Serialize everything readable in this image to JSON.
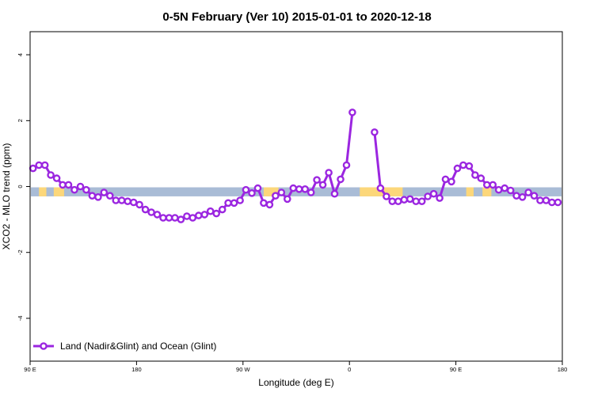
{
  "chart_data": {
    "type": "line",
    "title": "0-5N February (Ver 10)   2015-01-01 to 2020-12-18",
    "xlabel": "Longitude (deg E)",
    "ylabel": "XCO2 - MLO trend (ppm)",
    "xlim": [
      0,
      360
    ],
    "ylim": [
      -5.3,
      4.7
    ],
    "x_ticks": [
      {
        "value": 0,
        "label": "90 E"
      },
      {
        "value": 72,
        "label": "180"
      },
      {
        "value": 144,
        "label": "90 W"
      },
      {
        "value": 216,
        "label": "0"
      },
      {
        "value": 288,
        "label": "90 E"
      },
      {
        "value": 360,
        "label": "180"
      }
    ],
    "y_ticks": [
      {
        "value": -4,
        "label": "-4"
      },
      {
        "value": -2,
        "label": "-2"
      },
      {
        "value": 0,
        "label": "0"
      },
      {
        "value": 2,
        "label": "2"
      },
      {
        "value": 4,
        "label": "4"
      }
    ],
    "band": {
      "y_min": -0.25,
      "y_max": 0.0,
      "ocean_color": "#a9bcd6",
      "land_color": "#fcd77a"
    },
    "land_segments": [
      [
        6,
        11
      ],
      [
        16,
        23
      ],
      [
        158,
        168
      ],
      [
        223,
        252
      ],
      [
        295,
        300
      ],
      [
        306,
        312
      ]
    ],
    "series": [
      {
        "name": "Land (Nadir&Glint) and Ocean (Glint)",
        "color": "#9b26e0",
        "segments": [
          [
            [
              2,
              0.55
            ],
            [
              6,
              0.65
            ],
            [
              10,
              0.65
            ],
            [
              14,
              0.35
            ],
            [
              18,
              0.25
            ],
            [
              22,
              0.05
            ],
            [
              26,
              0.05
            ],
            [
              30,
              -0.1
            ],
            [
              34,
              0.0
            ],
            [
              38,
              -0.1
            ],
            [
              42,
              -0.28
            ],
            [
              46,
              -0.32
            ],
            [
              50,
              -0.18
            ],
            [
              54,
              -0.28
            ],
            [
              58,
              -0.42
            ],
            [
              62,
              -0.42
            ],
            [
              66,
              -0.45
            ],
            [
              70,
              -0.48
            ],
            [
              74,
              -0.55
            ],
            [
              78,
              -0.7
            ],
            [
              82,
              -0.78
            ],
            [
              86,
              -0.85
            ],
            [
              90,
              -0.95
            ],
            [
              94,
              -0.95
            ],
            [
              98,
              -0.95
            ],
            [
              102,
              -1.0
            ],
            [
              106,
              -0.9
            ],
            [
              110,
              -0.95
            ],
            [
              114,
              -0.88
            ],
            [
              118,
              -0.85
            ],
            [
              122,
              -0.75
            ],
            [
              126,
              -0.82
            ],
            [
              130,
              -0.7
            ],
            [
              134,
              -0.5
            ],
            [
              138,
              -0.5
            ],
            [
              142,
              -0.42
            ],
            [
              146,
              -0.1
            ],
            [
              150,
              -0.2
            ],
            [
              154,
              -0.05
            ],
            [
              158,
              -0.5
            ],
            [
              162,
              -0.55
            ],
            [
              166,
              -0.28
            ],
            [
              170,
              -0.18
            ],
            [
              174,
              -0.38
            ],
            [
              178,
              -0.05
            ],
            [
              182,
              -0.08
            ],
            [
              186,
              -0.08
            ],
            [
              190,
              -0.18
            ],
            [
              194,
              0.2
            ],
            [
              198,
              0.05
            ],
            [
              202,
              0.42
            ],
            [
              206,
              -0.22
            ],
            [
              210,
              0.22
            ],
            [
              214,
              0.65
            ],
            [
              218,
              2.25
            ]
          ],
          [
            [
              233,
              1.65
            ],
            [
              237,
              -0.05
            ],
            [
              241,
              -0.3
            ],
            [
              245,
              -0.45
            ],
            [
              249,
              -0.45
            ],
            [
              253,
              -0.4
            ],
            [
              257,
              -0.38
            ],
            [
              261,
              -0.45
            ],
            [
              265,
              -0.45
            ],
            [
              269,
              -0.3
            ],
            [
              273,
              -0.22
            ],
            [
              277,
              -0.35
            ],
            [
              281,
              0.22
            ],
            [
              285,
              0.15
            ],
            [
              289,
              0.55
            ],
            [
              293,
              0.65
            ],
            [
              297,
              0.62
            ],
            [
              301,
              0.35
            ],
            [
              305,
              0.25
            ],
            [
              309,
              0.05
            ],
            [
              313,
              0.05
            ],
            [
              317,
              -0.1
            ],
            [
              321,
              -0.05
            ],
            [
              325,
              -0.12
            ],
            [
              329,
              -0.28
            ],
            [
              333,
              -0.32
            ],
            [
              337,
              -0.18
            ],
            [
              341,
              -0.28
            ],
            [
              345,
              -0.42
            ],
            [
              349,
              -0.42
            ],
            [
              353,
              -0.48
            ],
            [
              357,
              -0.48
            ]
          ]
        ]
      }
    ],
    "legend_position": "bottom-left",
    "grid": false
  }
}
